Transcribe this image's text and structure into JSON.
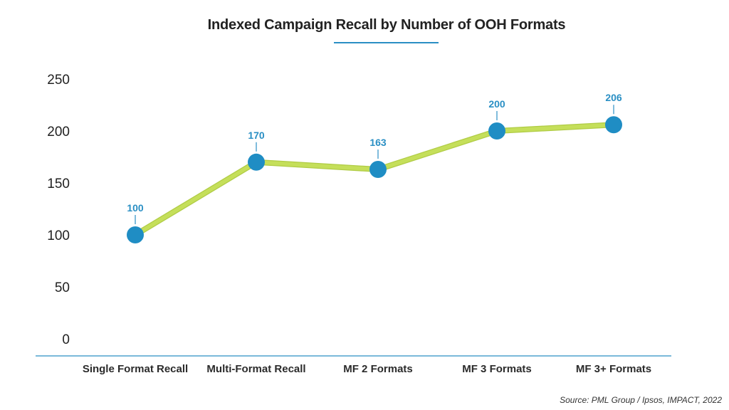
{
  "chart_data": {
    "type": "line",
    "title": "Indexed Campaign Recall by Number of OOH Formats",
    "categories": [
      "Single Format Recall",
      "Multi-Format Recall",
      "MF 2 Formats",
      "MF 3 Formats",
      "MF 3+ Formats"
    ],
    "series": [
      {
        "name": "Indexed Campaign Recall",
        "values": [
          100,
          170,
          163,
          200,
          206
        ],
        "data_labels": [
          "100",
          "170",
          "163",
          "200",
          "206"
        ]
      }
    ],
    "xlabel": "",
    "ylabel": "",
    "ylim": [
      0,
      250
    ],
    "yticks": [
      0,
      50,
      100,
      150,
      200,
      250
    ],
    "ytick_labels": [
      "0",
      "50",
      "100",
      "150",
      "200",
      "250"
    ],
    "grid": false,
    "legend": "none",
    "colors": {
      "line": "#c5df5a",
      "line_edge": "#b0cc45",
      "marker": "#1f8dc4",
      "label": "#2a8fc4",
      "axis": "#2a8fc4",
      "accent": "#2a8fc4"
    }
  },
  "source": "Source: PML Group / Ipsos, IMPACT, 2022"
}
